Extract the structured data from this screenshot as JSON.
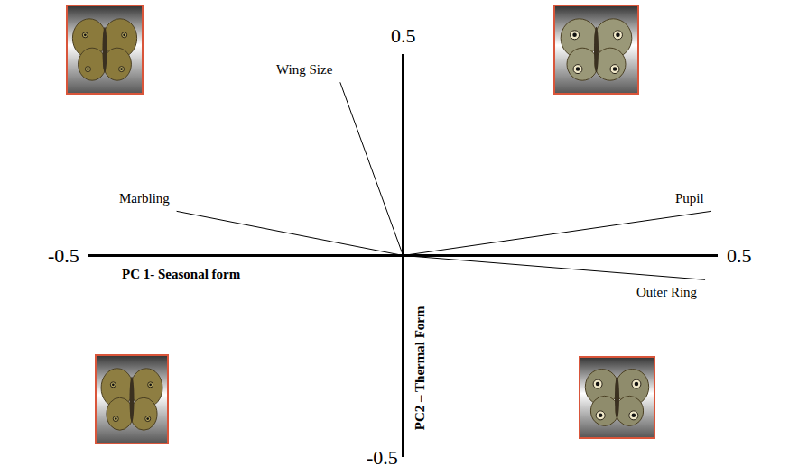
{
  "chart_data": {
    "type": "biplot",
    "xlabel": "PC 1- Seasonal form",
    "ylabel": "PC2 – Thermal Form",
    "xlim": [
      -0.5,
      0.5
    ],
    "ylim": [
      -0.5,
      0.5
    ],
    "xticks": [
      -0.5,
      0.5
    ],
    "yticks": [
      -0.5,
      0.5
    ],
    "grid": false,
    "color": "#000000",
    "loadings": [
      {
        "name": "Wing Size",
        "x": -0.1,
        "y": 0.43
      },
      {
        "name": "Marbling",
        "x": -0.36,
        "y": 0.11
      },
      {
        "name": "Pupil",
        "x": 0.49,
        "y": 0.11
      },
      {
        "name": "Outer Ring",
        "x": 0.48,
        "y": -0.06
      }
    ]
  }
}
